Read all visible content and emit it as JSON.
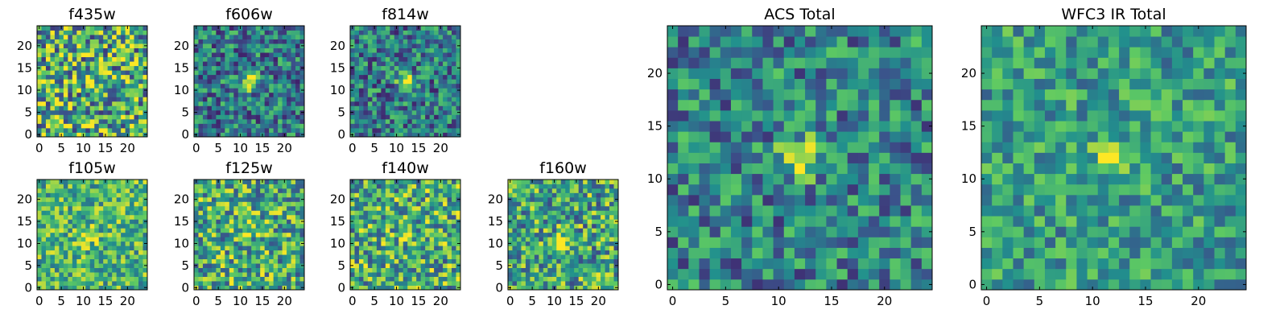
{
  "chart_data": [
    {
      "type": "heatmap",
      "title": "f435w",
      "xticks": [
        "0",
        "5",
        "10",
        "15",
        "20"
      ],
      "yticks": [
        "0",
        "5",
        "10",
        "15",
        "20"
      ],
      "xlim": [
        -0.5,
        24.5
      ],
      "ylim": [
        -0.5,
        24.5
      ],
      "peak": [
        12,
        12
      ],
      "peak_strength": 0.2,
      "noise": 0.45,
      "base": 0.62,
      "seed": 3
    },
    {
      "type": "heatmap",
      "title": "f606w",
      "xticks": [
        "0",
        "5",
        "10",
        "15",
        "20"
      ],
      "yticks": [
        "0",
        "5",
        "10",
        "15",
        "20"
      ],
      "xlim": [
        -0.5,
        24.5
      ],
      "ylim": [
        -0.5,
        24.5
      ],
      "peak": [
        12,
        12
      ],
      "peak_strength": 0.65,
      "noise": 0.32,
      "base": 0.42,
      "seed": 7
    },
    {
      "type": "heatmap",
      "title": "f814w",
      "xticks": [
        "0",
        "5",
        "10",
        "15",
        "20"
      ],
      "yticks": [
        "0",
        "5",
        "10",
        "15",
        "20"
      ],
      "xlim": [
        -0.5,
        24.5
      ],
      "ylim": [
        -0.5,
        24.5
      ],
      "peak": [
        12,
        12
      ],
      "peak_strength": 0.6,
      "noise": 0.32,
      "base": 0.42,
      "seed": 11
    },
    {
      "type": "heatmap",
      "title": "f105w",
      "xticks": [
        "0",
        "5",
        "10",
        "15",
        "20"
      ],
      "yticks": [
        "0",
        "5",
        "10",
        "15",
        "20"
      ],
      "xlim": [
        -0.5,
        24.5
      ],
      "ylim": [
        -0.5,
        24.5
      ],
      "peak": [
        11,
        12
      ],
      "peak_strength": 0.3,
      "noise": 0.3,
      "base": 0.66,
      "seed": 13
    },
    {
      "type": "heatmap",
      "title": "f125w",
      "xticks": [
        "0",
        "5",
        "10",
        "15",
        "20"
      ],
      "yticks": [
        "0",
        "5",
        "10",
        "15",
        "20"
      ],
      "xlim": [
        -0.5,
        24.5
      ],
      "ylim": [
        -0.5,
        24.5
      ],
      "peak": [
        12,
        13
      ],
      "peak_strength": 0.3,
      "noise": 0.38,
      "base": 0.62,
      "seed": 17
    },
    {
      "type": "heatmap",
      "title": "f140w",
      "xticks": [
        "0",
        "5",
        "10",
        "15",
        "20"
      ],
      "yticks": [
        "0",
        "5",
        "10",
        "15",
        "20"
      ],
      "xlim": [
        -0.5,
        24.5
      ],
      "ylim": [
        -0.5,
        24.5
      ],
      "peak": [
        12,
        12
      ],
      "peak_strength": 0.3,
      "noise": 0.38,
      "base": 0.62,
      "seed": 19
    },
    {
      "type": "heatmap",
      "title": "f160w",
      "xticks": [
        "0",
        "5",
        "10",
        "15",
        "20"
      ],
      "yticks": [
        "0",
        "5",
        "10",
        "15",
        "20"
      ],
      "xlim": [
        -0.5,
        24.5
      ],
      "ylim": [
        -0.5,
        24.5
      ],
      "peak": [
        12,
        11
      ],
      "peak_strength": 0.35,
      "noise": 0.38,
      "base": 0.6,
      "seed": 23
    },
    {
      "type": "heatmap",
      "title": "ACS Total",
      "xticks": [
        "0",
        "5",
        "10",
        "15",
        "20"
      ],
      "yticks": [
        "0",
        "5",
        "10",
        "15",
        "20"
      ],
      "xlim": [
        -0.5,
        24.5
      ],
      "ylim": [
        -0.5,
        24.5
      ],
      "peak": [
        12,
        12
      ],
      "peak_strength": 0.55,
      "noise": 0.3,
      "base": 0.45,
      "seed": 29
    },
    {
      "type": "heatmap",
      "title": "WFC3 IR Total",
      "xticks": [
        "0",
        "5",
        "10",
        "15",
        "20"
      ],
      "yticks": [
        "0",
        "5",
        "10",
        "15",
        "20"
      ],
      "xlim": [
        -0.5,
        24.5
      ],
      "ylim": [
        -0.5,
        24.5
      ],
      "peak": [
        12,
        12
      ],
      "peak_strength": 0.4,
      "noise": 0.25,
      "base": 0.55,
      "seed": 31
    }
  ],
  "colormap": [
    "#440154",
    "#3b528b",
    "#21908d",
    "#5dc963",
    "#fde725"
  ]
}
